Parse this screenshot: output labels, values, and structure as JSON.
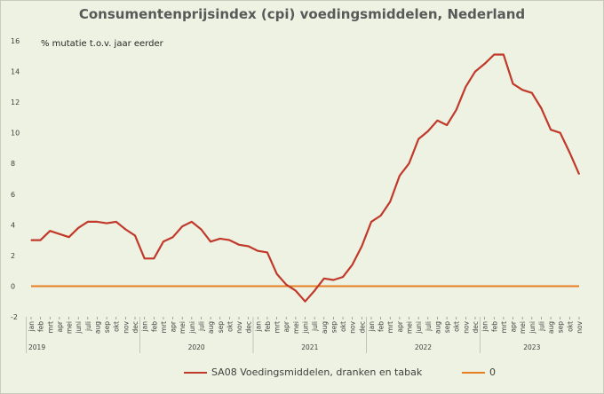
{
  "chart_data": {
    "type": "line",
    "title": "Consumentenprijsindex (cpi) voedingsmiddelen, Nederland",
    "annotation": "% mutatie t.o.v. jaar eerder",
    "ylim": [
      -2,
      16
    ],
    "yticks": [
      -2,
      0,
      2,
      4,
      6,
      8,
      10,
      12,
      14,
      16
    ],
    "months": [
      "jan",
      "feb",
      "mrt",
      "apr",
      "mei",
      "juni",
      "juli",
      "aug",
      "sep",
      "okt",
      "nov",
      "dec"
    ],
    "years": [
      "2019",
      "2020",
      "2021",
      "2022",
      "2023"
    ],
    "series": [
      {
        "name": "SA08 Voedingsmiddelen, dranken en tabak",
        "color": "#c0392b",
        "values": [
          3.0,
          3.0,
          3.6,
          3.4,
          3.2,
          3.8,
          4.2,
          4.2,
          4.1,
          4.2,
          3.7,
          3.3,
          1.8,
          1.8,
          2.9,
          3.2,
          3.9,
          4.2,
          3.7,
          2.9,
          3.1,
          3.0,
          2.7,
          2.6,
          2.3,
          2.2,
          0.8,
          0.1,
          -0.3,
          -1.0,
          -0.3,
          0.5,
          0.4,
          0.6,
          1.4,
          2.6,
          4.2,
          4.6,
          5.5,
          7.2,
          8.0,
          9.6,
          10.1,
          10.8,
          10.5,
          11.5,
          13.0,
          14.0,
          14.5,
          15.1,
          15.1,
          13.2,
          12.8,
          12.6,
          11.6,
          10.2,
          10.0,
          8.7,
          7.3
        ]
      },
      {
        "name": "0",
        "color": "#e67e22",
        "constant": 0
      }
    ]
  }
}
